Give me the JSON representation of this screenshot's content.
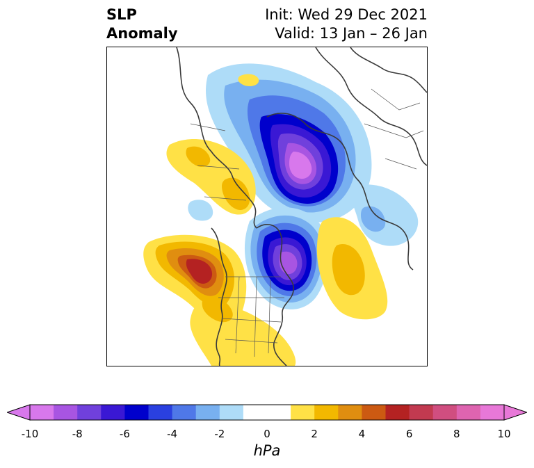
{
  "title": {
    "left_line1": "SLP",
    "left_line2": "Anomaly",
    "right_line1": "Init: Wed 29 Dec 2021",
    "right_line2": "Valid: 13 Jan – 26 Jan"
  },
  "colorbar": {
    "unit": "hPa",
    "min": -10,
    "max": 10,
    "ticks": [
      "-10",
      "-8",
      "-6",
      "-4",
      "-2",
      "0",
      "2",
      "4",
      "6",
      "8",
      "10"
    ],
    "tick_values": [
      -10,
      -8,
      -6,
      -4,
      -2,
      0,
      2,
      4,
      6,
      8,
      10
    ],
    "colors": [
      "#d878ec",
      "#a855e2",
      "#7040dc",
      "#3a18d4",
      "#0000cc",
      "#2a40e0",
      "#4f78e8",
      "#78b0f0",
      "#aedcf8",
      "#ffffff",
      "#ffffff",
      "#ffe146",
      "#f2b800",
      "#e08e10",
      "#cc5a12",
      "#b42222",
      "#c23a50",
      "#d04e80",
      "#de64b0",
      "#e878d8"
    ],
    "extend": "both"
  },
  "map": {
    "projection": "polar stereographic",
    "region": "North America / Arctic",
    "features": [
      "low-anomaly-arctic",
      "low-anomaly-hudson-bay",
      "high-anomaly-north-pacific",
      "high-anomaly-north-atlantic",
      "high-anomaly-alaska",
      "high-anomaly-southeast-us"
    ]
  }
}
